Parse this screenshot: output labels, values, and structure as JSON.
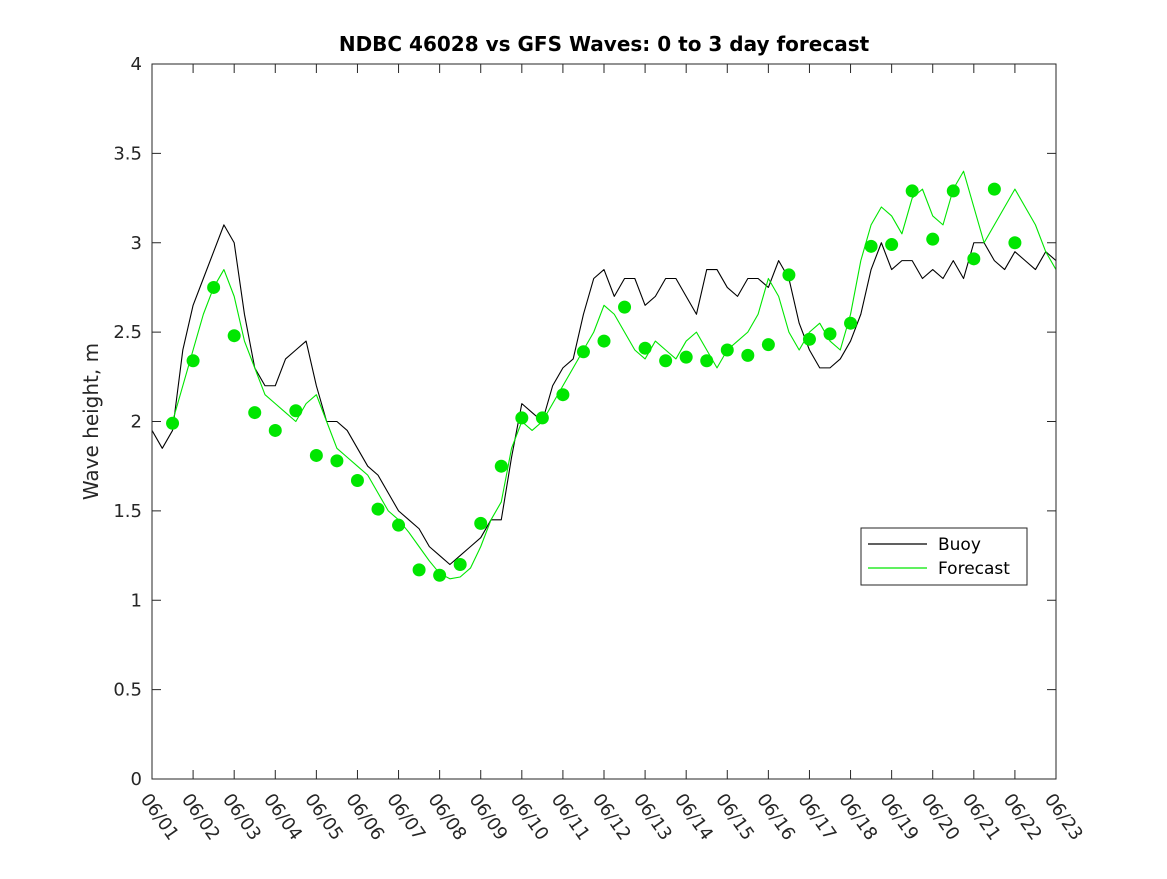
{
  "chart_data": {
    "type": "line",
    "title": "NDBC 46028 vs GFS Waves: 0 to 3 day forecast",
    "xlabel": "",
    "ylabel": "Wave height, m",
    "xlim": [
      "06/01",
      "06/23"
    ],
    "ylim": [
      0,
      4
    ],
    "x_ticks": [
      "06/01",
      "06/02",
      "06/03",
      "06/04",
      "06/05",
      "06/06",
      "06/07",
      "06/08",
      "06/09",
      "06/10",
      "06/11",
      "06/12",
      "06/13",
      "06/14",
      "06/15",
      "06/16",
      "06/17",
      "06/18",
      "06/19",
      "06/20",
      "06/21",
      "06/22",
      "06/23"
    ],
    "y_ticks": [
      "0",
      "0.5",
      "1",
      "1.5",
      "2",
      "2.5",
      "3",
      "3.5",
      "4"
    ],
    "grid": false,
    "legend_position": "right",
    "colors": {
      "buoy": "#000000",
      "forecast": "#00e600"
    },
    "series": [
      {
        "name": "Buoy",
        "style": "thin-line",
        "color": "#000000",
        "x": [
          0,
          0.25,
          0.5,
          0.75,
          1,
          1.25,
          1.5,
          1.75,
          2,
          2.25,
          2.5,
          2.75,
          3,
          3.25,
          3.5,
          3.75,
          4,
          4.25,
          4.5,
          4.75,
          5,
          5.25,
          5.5,
          5.75,
          6,
          6.25,
          6.5,
          6.75,
          7,
          7.25,
          7.5,
          7.75,
          8,
          8.25,
          8.5,
          8.75,
          9,
          9.25,
          9.5,
          9.75,
          10,
          10.25,
          10.5,
          10.75,
          11,
          11.25,
          11.5,
          11.75,
          12,
          12.25,
          12.5,
          12.75,
          13,
          13.25,
          13.5,
          13.75,
          14,
          14.25,
          14.5,
          14.75,
          15,
          15.25,
          15.5,
          15.75,
          16,
          16.25,
          16.5,
          16.75,
          17,
          17.25,
          17.5,
          17.75,
          18,
          18.25,
          18.5,
          18.75,
          19,
          19.25,
          19.5,
          19.75,
          20,
          20.25,
          20.5,
          20.75,
          21,
          21.25,
          21.5,
          21.75,
          22
        ],
        "y": [
          1.95,
          1.85,
          1.95,
          2.4,
          2.65,
          2.8,
          2.95,
          3.1,
          3.0,
          2.6,
          2.3,
          2.2,
          2.2,
          2.35,
          2.4,
          2.45,
          2.2,
          2.0,
          2.0,
          1.95,
          1.85,
          1.75,
          1.7,
          1.6,
          1.5,
          1.45,
          1.4,
          1.3,
          1.25,
          1.2,
          1.25,
          1.3,
          1.35,
          1.45,
          1.45,
          1.8,
          2.1,
          2.05,
          2.0,
          2.2,
          2.3,
          2.35,
          2.6,
          2.8,
          2.85,
          2.7,
          2.8,
          2.8,
          2.65,
          2.7,
          2.8,
          2.8,
          2.7,
          2.6,
          2.85,
          2.85,
          2.75,
          2.7,
          2.8,
          2.8,
          2.75,
          2.9,
          2.8,
          2.55,
          2.4,
          2.3,
          2.3,
          2.35,
          2.45,
          2.6,
          2.85,
          3.0,
          2.85,
          2.9,
          2.9,
          2.8,
          2.85,
          2.8,
          2.9,
          2.8,
          3.0,
          3.0,
          2.9,
          2.85,
          2.95,
          2.9,
          2.85,
          2.95,
          2.9
        ]
      },
      {
        "name": "Forecast",
        "style": "thin-line",
        "color": "#00e600",
        "x": [
          0.5,
          0.75,
          1,
          1.25,
          1.5,
          1.75,
          2,
          2.25,
          2.5,
          2.75,
          3,
          3.25,
          3.5,
          3.75,
          4,
          4.25,
          4.5,
          4.75,
          5,
          5.25,
          5.5,
          5.75,
          6,
          6.25,
          6.5,
          6.75,
          7,
          7.25,
          7.5,
          7.75,
          8,
          8.25,
          8.5,
          8.75,
          9,
          9.25,
          9.5,
          9.75,
          10,
          10.25,
          10.5,
          10.75,
          11,
          11.25,
          11.5,
          11.75,
          12,
          12.25,
          12.5,
          12.75,
          13,
          13.25,
          13.5,
          13.75,
          14,
          14.25,
          14.5,
          14.75,
          15,
          15.25,
          15.5,
          15.75,
          16,
          16.25,
          16.5,
          16.75,
          17,
          17.25,
          17.5,
          17.75,
          18,
          18.25,
          18.5,
          18.75,
          19,
          19.25,
          19.5,
          19.75,
          20,
          20.25,
          20.5,
          20.75,
          21,
          21.25,
          21.5,
          21.75,
          22
        ],
        "y": [
          2.0,
          2.2,
          2.4,
          2.6,
          2.75,
          2.85,
          2.7,
          2.45,
          2.3,
          2.15,
          2.1,
          2.05,
          2.0,
          2.1,
          2.15,
          2.0,
          1.85,
          1.8,
          1.75,
          1.7,
          1.6,
          1.5,
          1.45,
          1.38,
          1.3,
          1.22,
          1.15,
          1.12,
          1.13,
          1.18,
          1.3,
          1.45,
          1.55,
          1.85,
          2.0,
          1.95,
          2.0,
          2.1,
          2.2,
          2.3,
          2.4,
          2.5,
          2.65,
          2.6,
          2.5,
          2.4,
          2.35,
          2.45,
          2.4,
          2.35,
          2.45,
          2.5,
          2.4,
          2.3,
          2.4,
          2.45,
          2.5,
          2.6,
          2.8,
          2.7,
          2.5,
          2.4,
          2.5,
          2.55,
          2.45,
          2.4,
          2.6,
          2.9,
          3.1,
          3.2,
          3.15,
          3.05,
          3.25,
          3.3,
          3.15,
          3.1,
          3.3,
          3.4,
          3.2,
          3.0,
          3.1,
          3.2,
          3.3,
          3.2,
          3.1,
          2.95,
          2.85
        ]
      },
      {
        "name": "Forecast",
        "style": "markers",
        "color": "#00e600",
        "x": [
          0.5,
          1,
          1.5,
          2,
          2.5,
          3,
          3.5,
          4,
          4.5,
          5,
          5.5,
          6,
          6.5,
          7,
          7.5,
          8,
          8.5,
          9,
          9.5,
          10,
          10.5,
          11,
          11.5,
          12,
          12.5,
          13,
          13.5,
          14,
          14.5,
          15,
          15.5,
          16,
          16.5,
          17,
          17.5,
          18,
          18.5,
          19,
          19.5,
          20,
          20.5,
          21
        ],
        "y": [
          1.99,
          2.34,
          2.75,
          2.48,
          2.05,
          1.95,
          2.06,
          1.81,
          1.78,
          1.67,
          1.51,
          1.42,
          1.17,
          1.14,
          1.2,
          1.43,
          1.75,
          2.02,
          2.02,
          2.15,
          2.39,
          2.45,
          2.64,
          2.41,
          2.34,
          2.36,
          2.34,
          2.4,
          2.37,
          2.43,
          2.82,
          2.46,
          2.49,
          2.55,
          2.98,
          2.99,
          3.29,
          3.02,
          3.29,
          2.91,
          3.3,
          3.0
        ]
      }
    ],
    "legend": [
      {
        "label": "Buoy",
        "color": "#000000"
      },
      {
        "label": "Forecast",
        "color": "#00e600"
      }
    ]
  }
}
